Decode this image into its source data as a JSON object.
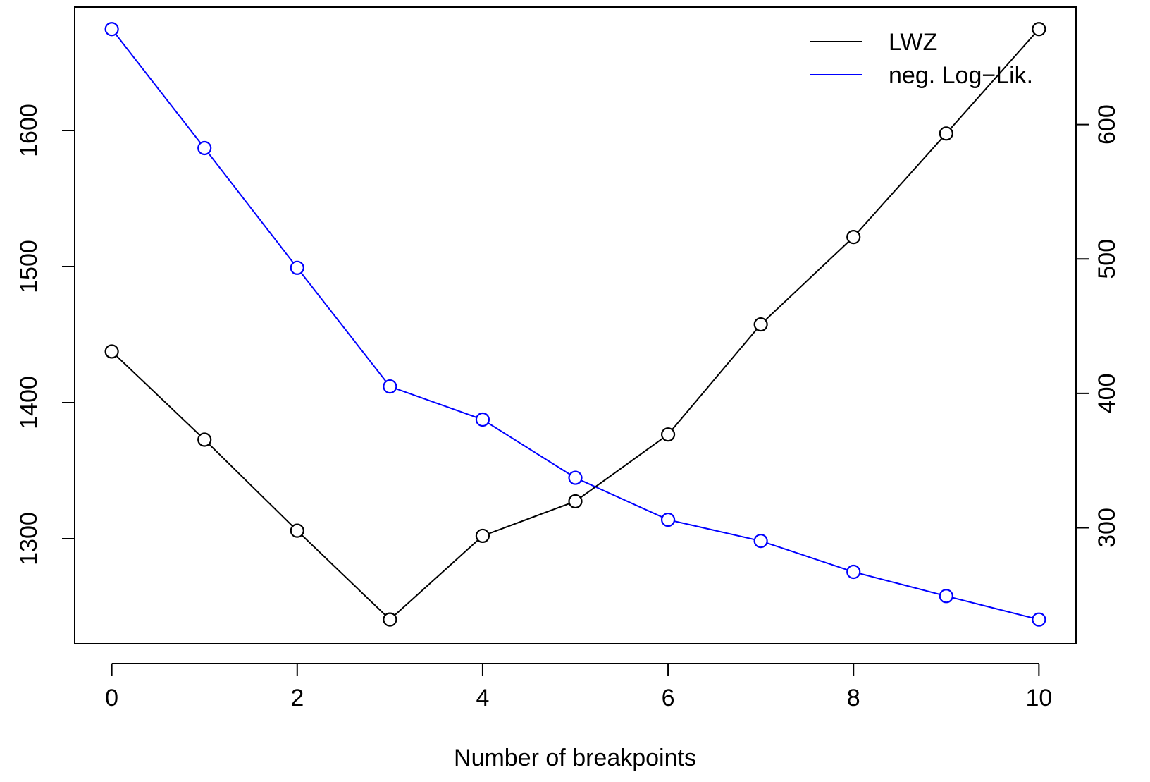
{
  "chart_data": {
    "type": "line",
    "x_label": "Number of breakpoints",
    "x": [
      0,
      1,
      2,
      3,
      4,
      5,
      6,
      7,
      8,
      9,
      10
    ],
    "xlim": [
      -0.4,
      10.4
    ],
    "xticks": [
      0,
      2,
      4,
      6,
      8,
      10
    ],
    "ylim": [
      1222.8,
      1690.7
    ],
    "yticks": [
      1300,
      1400,
      1500,
      1600
    ],
    "y2lim": [
      213.7,
      687.4
    ],
    "y2ticks": [
      300,
      400,
      500,
      600
    ],
    "legend": "topright",
    "series": [
      {
        "name": "LWZ",
        "color": "#000000",
        "axis": "y",
        "values": [
          1437.6,
          1372.8,
          1305.9,
          1240.6,
          1302.1,
          1327.5,
          1376.6,
          1457.5,
          1521.7,
          1597.8,
          1674.5
        ]
      },
      {
        "name": "neg. Log−Lik.",
        "color": "#0000ff",
        "axis": "y2",
        "values": [
          671.0,
          582.5,
          493.4,
          405.1,
          380.5,
          337.2,
          306.0,
          290.2,
          267.2,
          249.2,
          231.7
        ]
      }
    ]
  }
}
